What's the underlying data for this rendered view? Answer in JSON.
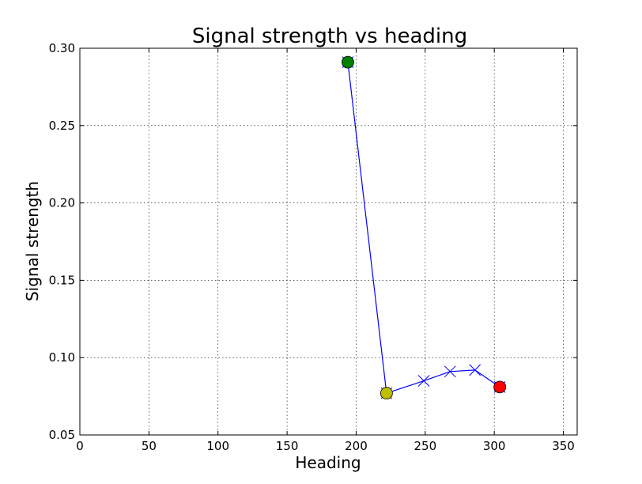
{
  "chart_data": {
    "type": "line",
    "title": "Signal strength vs heading",
    "xlabel": "Heading",
    "ylabel": "Signal strength",
    "xlim": [
      0,
      360
    ],
    "ylim": [
      0.05,
      0.3
    ],
    "grid": true,
    "x_ticks": [
      0,
      50,
      100,
      150,
      200,
      250,
      300,
      350
    ],
    "y_ticks": [
      0.05,
      0.1,
      0.15,
      0.2,
      0.25,
      0.3
    ],
    "x_tick_labels": [
      "0",
      "50",
      "100",
      "150",
      "200",
      "250",
      "300",
      "350"
    ],
    "y_tick_labels": [
      "0.05",
      "0.10",
      "0.15",
      "0.20",
      "0.25",
      "0.30"
    ],
    "series": [
      {
        "line_color": "#0000ff",
        "marker": "x",
        "x": [
          194,
          222,
          249,
          268,
          286,
          304
        ],
        "y": [
          0.291,
          0.077,
          0.085,
          0.091,
          0.092,
          0.081
        ]
      }
    ],
    "highlight_points": [
      {
        "x": 194,
        "y": 0.291,
        "color": "#008000"
      },
      {
        "x": 222,
        "y": 0.077,
        "color": "#bfbf00"
      },
      {
        "x": 304,
        "y": 0.081,
        "color": "#ff0000"
      }
    ]
  }
}
